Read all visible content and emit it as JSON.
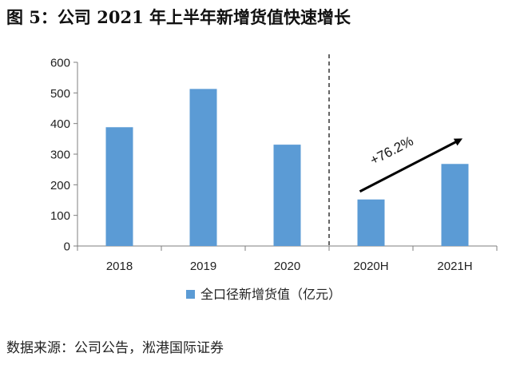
{
  "title_prefix": "图 5：",
  "title_main": "公司 2021 年上半年新增货值快速增长",
  "source": "数据来源：公司公告，淞港国际证券",
  "chart_data": {
    "type": "bar",
    "categories": [
      "2018",
      "2019",
      "2020",
      "2020H",
      "2021H"
    ],
    "series": [
      {
        "name": "全口径新增货值（亿元）",
        "values": [
          388,
          513,
          331,
          152,
          268
        ]
      }
    ],
    "ylim": [
      0,
      600
    ],
    "yticks": [
      0,
      100,
      200,
      300,
      400,
      500,
      600
    ],
    "xlabel": "",
    "ylabel": "",
    "grid": false,
    "legend": "bottom",
    "annotation": "+76.2%",
    "divider_after_category": "2020",
    "colors": {
      "bar": "#5B9BD5",
      "axis": "#7f7f7f",
      "text": "#222222"
    }
  }
}
